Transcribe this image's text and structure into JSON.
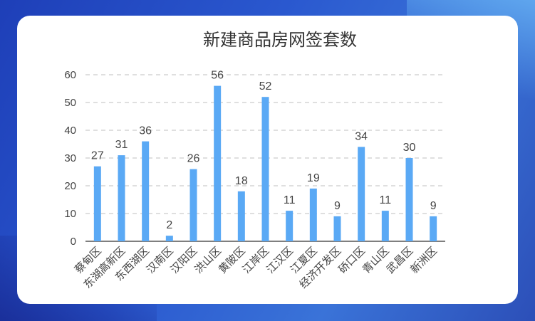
{
  "chart_data": {
    "type": "bar",
    "title": "新建商品房网签套数",
    "categories": [
      "蔡甸区",
      "东湖高新区",
      "东西湖区",
      "汉南区",
      "汉阳区",
      "洪山区",
      "黄陂区",
      "江岸区",
      "江汉区",
      "江夏区",
      "经济开发区",
      "硚口区",
      "青山区",
      "武昌区",
      "新洲区"
    ],
    "values": [
      27,
      31,
      36,
      2,
      26,
      56,
      18,
      52,
      11,
      19,
      9,
      34,
      11,
      30,
      9
    ],
    "ylim": [
      0,
      60
    ],
    "yticks": [
      0,
      10,
      20,
      30,
      40,
      50,
      60
    ],
    "xlabel": "",
    "ylabel": "",
    "grid": "horizontal dashed",
    "bar_color": "#5aa9f5"
  }
}
